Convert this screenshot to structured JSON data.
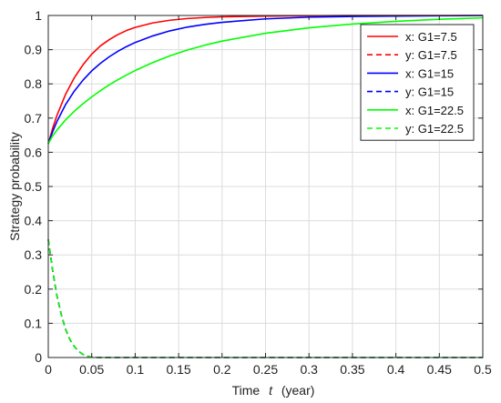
{
  "chart_data": {
    "type": "line",
    "title": "",
    "xlabel_prefix": "Time",
    "xlabel_var": "t",
    "xlabel_suffix": "(year)",
    "ylabel": "Strategy probability",
    "xlim": [
      0,
      0.5
    ],
    "ylim": [
      0,
      1
    ],
    "xticks": [
      0,
      0.05,
      0.1,
      0.15,
      0.2,
      0.25,
      0.3,
      0.35,
      0.4,
      0.45,
      0.5
    ],
    "xtick_labels": [
      "0",
      "0.05",
      "0.1",
      "0.15",
      "0.2",
      "0.25",
      "0.3",
      "0.35",
      "0.4",
      "0.45",
      "0.5"
    ],
    "yticks": [
      0,
      0.1,
      0.2,
      0.3,
      0.4,
      0.5,
      0.6,
      0.7,
      0.8,
      0.9,
      1
    ],
    "ytick_labels": [
      "0",
      "0.1",
      "0.2",
      "0.3",
      "0.4",
      "0.5",
      "0.6",
      "0.7",
      "0.8",
      "0.9",
      "1"
    ],
    "grid": true,
    "legend_position": "top-right",
    "series": [
      {
        "name": "x: G1=7.5",
        "color": "#ff0000",
        "style": "solid",
        "x": [
          0,
          0.005,
          0.01,
          0.02,
          0.03,
          0.04,
          0.05,
          0.06,
          0.07,
          0.08,
          0.09,
          0.1,
          0.12,
          0.14,
          0.16,
          0.18,
          0.2,
          0.25,
          0.3,
          0.35,
          0.4,
          0.45,
          0.5
        ],
        "y": [
          0.625,
          0.67,
          0.708,
          0.77,
          0.818,
          0.856,
          0.887,
          0.911,
          0.929,
          0.944,
          0.956,
          0.965,
          0.978,
          0.986,
          0.991,
          0.994,
          0.996,
          0.998,
          0.999,
          1.0,
          1.0,
          1.0,
          1.0
        ]
      },
      {
        "name": "y: G1=7.5",
        "color": "#ff0000",
        "style": "dashed",
        "x": [
          0,
          0.005,
          0.01,
          0.015,
          0.02,
          0.025,
          0.03,
          0.035,
          0.04,
          0.045,
          0.05,
          0.06,
          0.1,
          0.2,
          0.3,
          0.4,
          0.5
        ],
        "y": [
          0.345,
          0.255,
          0.18,
          0.125,
          0.082,
          0.052,
          0.032,
          0.018,
          0.009,
          0.004,
          0.001,
          0,
          0,
          0,
          0,
          0,
          0
        ]
      },
      {
        "name": "x: G1=15",
        "color": "#0000ff",
        "style": "solid",
        "x": [
          0,
          0.005,
          0.01,
          0.02,
          0.03,
          0.04,
          0.05,
          0.06,
          0.07,
          0.08,
          0.09,
          0.1,
          0.12,
          0.14,
          0.16,
          0.18,
          0.2,
          0.25,
          0.3,
          0.35,
          0.4,
          0.45,
          0.5
        ],
        "y": [
          0.625,
          0.66,
          0.69,
          0.74,
          0.779,
          0.811,
          0.838,
          0.86,
          0.879,
          0.895,
          0.909,
          0.921,
          0.94,
          0.955,
          0.966,
          0.974,
          0.98,
          0.99,
          0.995,
          0.997,
          0.998,
          0.999,
          1.0
        ]
      },
      {
        "name": "y: G1=15",
        "color": "#0000ff",
        "style": "dashed",
        "x": [
          0,
          0.005,
          0.01,
          0.015,
          0.02,
          0.025,
          0.03,
          0.035,
          0.04,
          0.045,
          0.05,
          0.06,
          0.1,
          0.2,
          0.3,
          0.4,
          0.5
        ],
        "y": [
          0.345,
          0.255,
          0.18,
          0.125,
          0.082,
          0.052,
          0.032,
          0.018,
          0.009,
          0.004,
          0.001,
          0,
          0,
          0,
          0,
          0,
          0
        ]
      },
      {
        "name": "x: G1=22.5",
        "color": "#00ff00",
        "style": "solid",
        "x": [
          0,
          0.005,
          0.01,
          0.02,
          0.03,
          0.04,
          0.05,
          0.06,
          0.07,
          0.08,
          0.09,
          0.1,
          0.12,
          0.14,
          0.16,
          0.18,
          0.2,
          0.25,
          0.3,
          0.35,
          0.4,
          0.45,
          0.5
        ],
        "y": [
          0.625,
          0.648,
          0.665,
          0.695,
          0.72,
          0.742,
          0.762,
          0.78,
          0.797,
          0.812,
          0.826,
          0.839,
          0.862,
          0.882,
          0.899,
          0.913,
          0.925,
          0.948,
          0.964,
          0.975,
          0.983,
          0.989,
          0.993
        ]
      },
      {
        "name": "y: G1=22.5",
        "color": "#00ff00",
        "style": "dashed",
        "x": [
          0,
          0.005,
          0.01,
          0.015,
          0.02,
          0.025,
          0.03,
          0.035,
          0.04,
          0.045,
          0.05,
          0.06,
          0.1,
          0.2,
          0.3,
          0.4,
          0.5
        ],
        "y": [
          0.345,
          0.255,
          0.18,
          0.125,
          0.082,
          0.052,
          0.032,
          0.018,
          0.009,
          0.004,
          0.001,
          0,
          0,
          0,
          0,
          0,
          0
        ]
      }
    ]
  }
}
